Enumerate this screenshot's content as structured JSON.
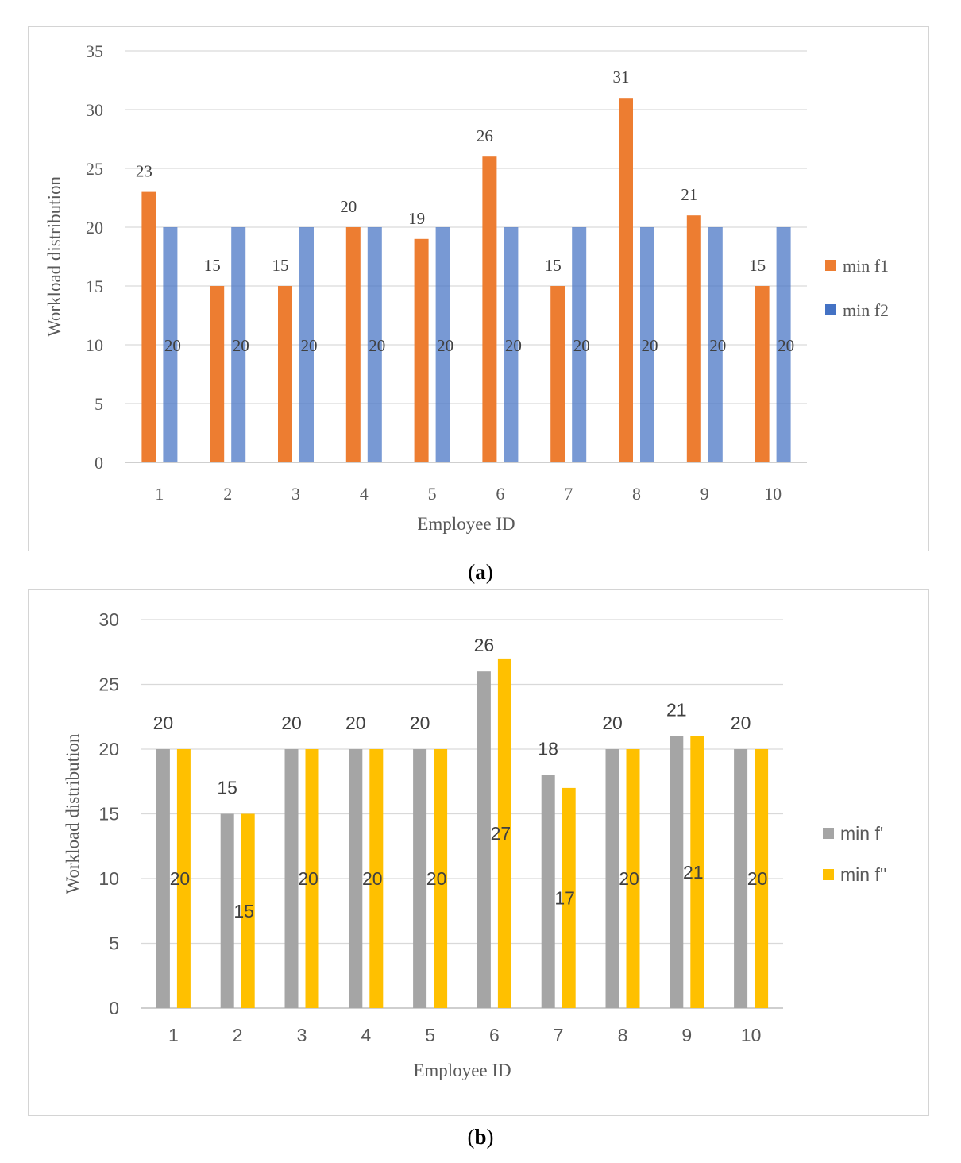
{
  "chart_data": [
    {
      "type": "bar",
      "panel": "a",
      "categories": [
        "1",
        "2",
        "3",
        "4",
        "5",
        "6",
        "7",
        "8",
        "9",
        "10"
      ],
      "series": [
        {
          "name": "min f1",
          "color": "#ED7D31",
          "values": [
            23,
            15,
            15,
            20,
            19,
            26,
            15,
            31,
            21,
            15
          ]
        },
        {
          "name": "min f2",
          "color": "#4472C4",
          "values": [
            20,
            20,
            20,
            20,
            20,
            20,
            20,
            20,
            20,
            20
          ]
        }
      ],
      "title": "",
      "xlabel": "Employee ID",
      "ylabel": "Workload distribution",
      "ylim": [
        0,
        35
      ],
      "yticks": [
        0,
        5,
        10,
        15,
        20,
        25,
        30,
        35
      ],
      "grid": true,
      "legend": "right"
    },
    {
      "type": "bar",
      "panel": "b",
      "categories": [
        "1",
        "2",
        "3",
        "4",
        "5",
        "6",
        "7",
        "8",
        "9",
        "10"
      ],
      "series": [
        {
          "name": "min f'",
          "color": "#A5A5A5",
          "values": [
            20,
            15,
            20,
            20,
            20,
            26,
            18,
            20,
            21,
            20
          ]
        },
        {
          "name": "min f''",
          "color": "#FFC000",
          "values": [
            20,
            15,
            20,
            20,
            20,
            27,
            17,
            20,
            21,
            20
          ]
        }
      ],
      "title": "",
      "xlabel": "Employee ID",
      "ylabel": "Workload distribution",
      "ylim": [
        0,
        30
      ],
      "yticks": [
        0,
        5,
        10,
        15,
        20,
        25,
        30
      ],
      "grid": true,
      "legend": "right"
    }
  ],
  "captions": {
    "a": {
      "open": "(",
      "letter": "a",
      "close": ")"
    },
    "b": {
      "open": "(",
      "letter": "b",
      "close": ")"
    }
  }
}
